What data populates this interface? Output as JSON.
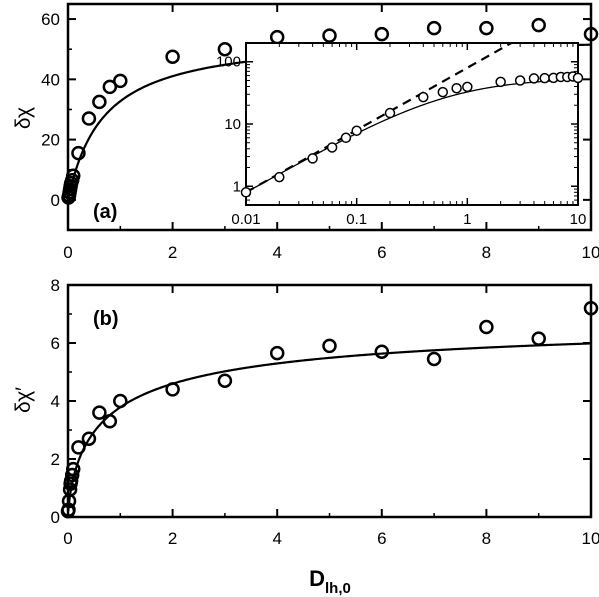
{
  "chart_data": [
    {
      "id": "a",
      "type": "scatter",
      "panel_label": "(a)",
      "xlabel": "",
      "ylabel": "δχ",
      "xlim": [
        0,
        10
      ],
      "ylim": [
        -10,
        65
      ],
      "xticks": [
        0,
        2,
        4,
        6,
        8,
        10
      ],
      "xtick_labels": [
        "0",
        "2",
        "4",
        "6",
        "8",
        "10"
      ],
      "yticks": [
        0,
        20,
        40,
        60
      ],
      "ytick_labels": [
        "0",
        "20",
        "40",
        "60"
      ],
      "grid": false,
      "series": [
        {
          "x": [
            0.01,
            0.02,
            0.03,
            0.04,
            0.05,
            0.06,
            0.08,
            0.1,
            0.2,
            0.4,
            0.6,
            0.8,
            1.0,
            2.0,
            3.0,
            4.0,
            5.0,
            6.0,
            7.0,
            8.0,
            9.0,
            10.0
          ],
          "y": [
            0.8,
            1.4,
            2.5,
            3.5,
            4.5,
            5.5,
            6.5,
            8.0,
            15.5,
            27.0,
            32.5,
            37.5,
            39.5,
            47.5,
            50.0,
            54.0,
            54.5,
            55.0,
            57.0,
            57.0,
            58.0,
            55.0
          ]
        }
      ],
      "fit_curve": {
        "form": "a*x^p/(1+(x/c)^p)",
        "a": 80,
        "p": 1.0,
        "c": 0.7,
        "ymax": 55
      },
      "inset": {
        "type": "scatter",
        "xscale": "log",
        "yscale": "log",
        "xlim": [
          0.01,
          10
        ],
        "ylim": [
          0.5,
          200
        ],
        "xticks": [
          0.01,
          0.1,
          1,
          10
        ],
        "xtick_labels": [
          "0.01",
          "0.1",
          "1",
          "10"
        ],
        "yticks": [
          1,
          10,
          100
        ],
        "ytick_labels": [
          "1",
          "10",
          "100"
        ],
        "series": [
          {
            "x": [
              0.01,
              0.02,
              0.04,
              0.06,
              0.08,
              0.1,
              0.2,
              0.4,
              0.6,
              0.8,
              1.0,
              2.0,
              3.0,
              4.0,
              5.0,
              6.0,
              7.0,
              8.0,
              9.0,
              10.0
            ],
            "y": [
              0.8,
              1.4,
              2.8,
              4.2,
              6.0,
              7.8,
              15.0,
              27.0,
              32.5,
              37.5,
              39.5,
              47.5,
              50.0,
              54.0,
              54.5,
              55.0,
              57.0,
              57.0,
              58.0,
              55.0
            ]
          }
        ],
        "dashed_line": {
          "slope": 1.0,
          "intercept_at_x1": 80
        }
      }
    },
    {
      "id": "b",
      "type": "scatter",
      "panel_label": "(b)",
      "xlabel": "D",
      "xlabel_sub": "lh,0",
      "ylabel": "δχ′",
      "xlim": [
        0,
        10
      ],
      "ylim": [
        0,
        8
      ],
      "xticks": [
        0,
        2,
        4,
        6,
        8,
        10
      ],
      "xtick_labels": [
        "0",
        "2",
        "4",
        "6",
        "8",
        "10"
      ],
      "yticks": [
        0,
        2,
        4,
        6,
        8
      ],
      "ytick_labels": [
        "0",
        "2",
        "4",
        "6",
        "8"
      ],
      "grid": false,
      "series": [
        {
          "x": [
            0.0,
            0.01,
            0.02,
            0.04,
            0.05,
            0.06,
            0.08,
            0.1,
            0.2,
            0.4,
            0.6,
            0.8,
            1.0,
            2.0,
            3.0,
            4.0,
            5.0,
            6.0,
            7.0,
            8.0,
            9.0,
            10.0
          ],
          "y": [
            0.2,
            0.25,
            0.55,
            0.95,
            1.15,
            1.25,
            1.45,
            1.65,
            2.4,
            2.7,
            3.6,
            3.3,
            4.0,
            4.4,
            4.7,
            5.65,
            5.9,
            5.7,
            5.45,
            6.55,
            6.15,
            7.2
          ]
        }
      ],
      "fit_curve": {
        "form": "a*x^p/(1+b*x^p)"
      }
    }
  ]
}
